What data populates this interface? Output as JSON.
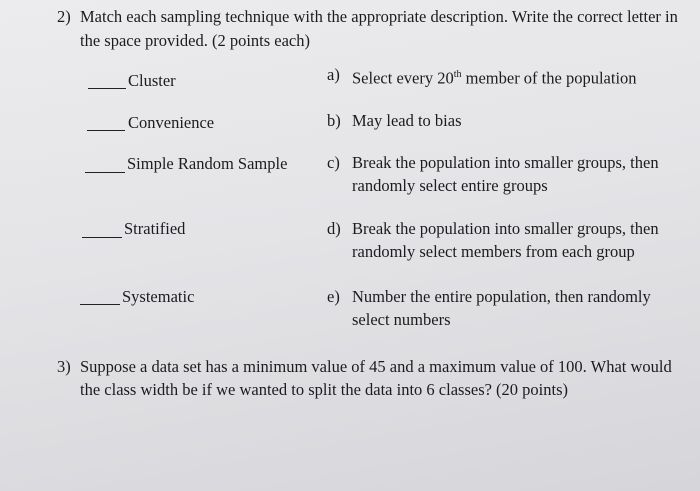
{
  "q2": {
    "number": "2)",
    "line1": "Match each sampling technique with the appropriate description.  Write the correct letter in",
    "line2": "the space provided. (2 points each)",
    "techniques": [
      "Cluster",
      "Convenience",
      "Simple Random Sample",
      "Stratified",
      "Systematic"
    ],
    "descriptions": [
      {
        "letter": "a)",
        "lines": [
          "Select every 20",
          "th",
          " member of the population"
        ]
      },
      {
        "letter": "b)",
        "lines": [
          "May lead to bias"
        ]
      },
      {
        "letter": "c)",
        "lines": [
          "Break the population into smaller groups, then",
          "randomly select entire groups"
        ]
      },
      {
        "letter": "d)",
        "lines": [
          "Break the population into smaller groups, then",
          "randomly select members from each group"
        ]
      },
      {
        "letter": "e)",
        "lines": [
          "Number the entire population, then randomly",
          "select numbers"
        ]
      }
    ]
  },
  "q3": {
    "number": "3)",
    "line1": "Suppose a data set has a minimum value of 45 and a maximum value of 100.  What would",
    "line2": "the class width be if we wanted to split the data into 6 classes? (20 points)"
  }
}
